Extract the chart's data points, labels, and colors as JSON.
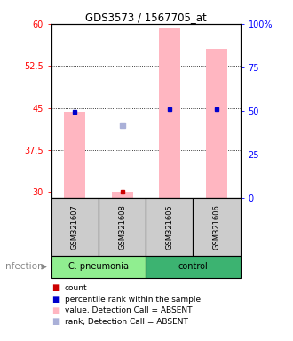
{
  "title": "GDS3573 / 1567705_at",
  "samples": [
    "GSM321607",
    "GSM321608",
    "GSM321605",
    "GSM321606"
  ],
  "ylim_left": [
    29,
    60
  ],
  "ylim_right": [
    0,
    100
  ],
  "yticks_left": [
    30,
    37.5,
    45,
    52.5,
    60
  ],
  "yticks_right": [
    0,
    25,
    50,
    75,
    100
  ],
  "bar_values": [
    44.3,
    30.05,
    59.3,
    55.5
  ],
  "bar_color": "#ffb6c1",
  "rank_markers": [
    44.3,
    null,
    44.8,
    44.8
  ],
  "absent_rank_marker": [
    null,
    42.0,
    null,
    null
  ],
  "absent_rank_color": "#aab0d8",
  "count_marker": [
    null,
    30.1,
    null,
    null
  ],
  "count_color": "#cc0000",
  "blue_color": "#0000cc",
  "grid_dotted_values": [
    37.5,
    45,
    52.5
  ],
  "sample_box_color": "#cccccc",
  "group_spans": [
    {
      "start": 0,
      "end": 1,
      "label": "C. pneumonia",
      "color": "#90ee90"
    },
    {
      "start": 2,
      "end": 3,
      "label": "control",
      "color": "#3cb371"
    }
  ],
  "group_label": "infection",
  "legend_items": [
    {
      "color": "#cc0000",
      "label": "count"
    },
    {
      "color": "#0000cc",
      "label": "percentile rank within the sample"
    },
    {
      "color": "#ffb6c1",
      "label": "value, Detection Call = ABSENT"
    },
    {
      "color": "#aab0d8",
      "label": "rank, Detection Call = ABSENT"
    }
  ]
}
